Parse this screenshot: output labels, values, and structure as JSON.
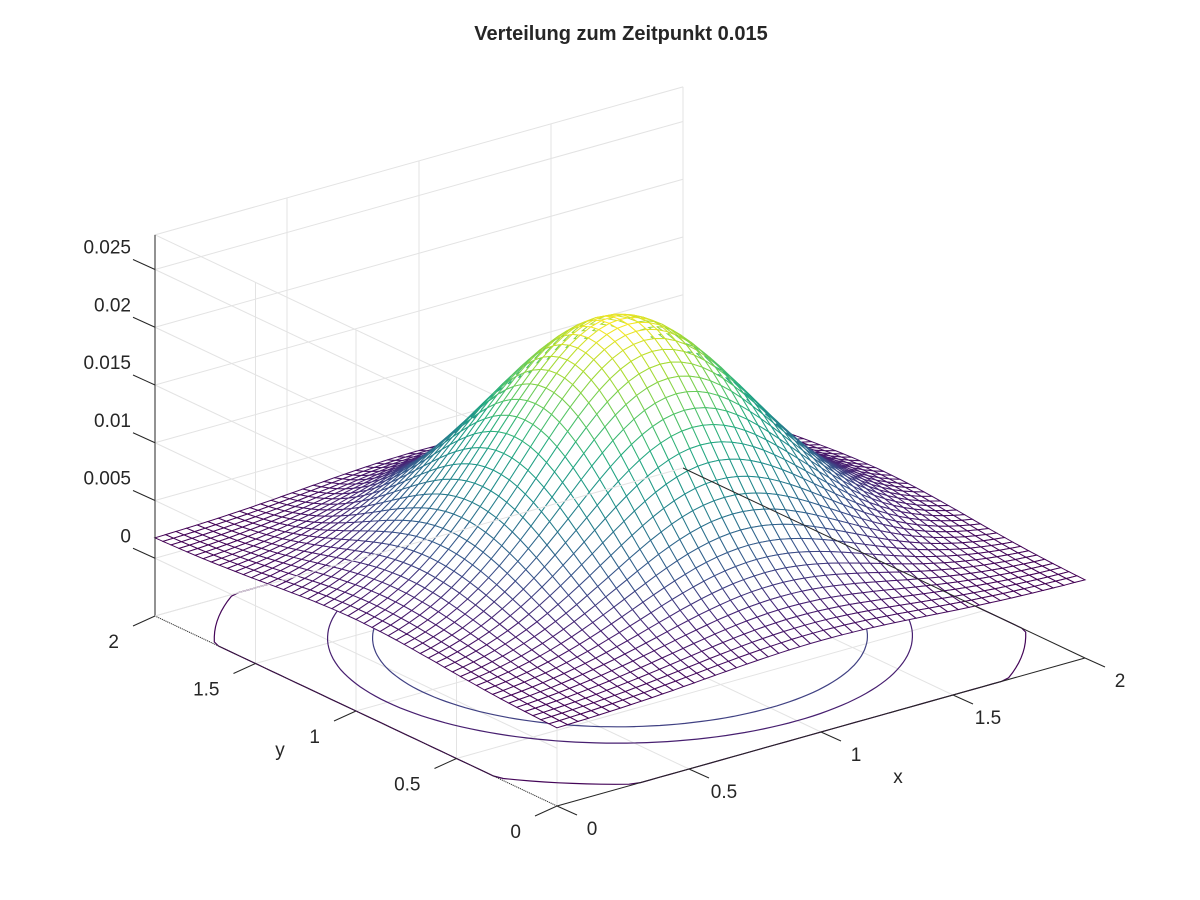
{
  "chart_data": {
    "type": "surface",
    "title": "Verteilung zum Zeitpunkt 0.015",
    "xlabel": "x",
    "ylabel": "y",
    "zlabel": "",
    "xlim": [
      0,
      2
    ],
    "ylim": [
      0,
      2
    ],
    "zlim": [
      -0.005,
      0.028
    ],
    "xticks": [
      {
        "value": 0,
        "label": "0"
      },
      {
        "value": 0.5,
        "label": "0.5"
      },
      {
        "value": 1,
        "label": "1"
      },
      {
        "value": 1.5,
        "label": "1.5"
      },
      {
        "value": 2,
        "label": "2"
      }
    ],
    "yticks": [
      {
        "value": 0,
        "label": "0"
      },
      {
        "value": 0.5,
        "label": "0.5"
      },
      {
        "value": 1,
        "label": "1"
      },
      {
        "value": 1.5,
        "label": "1.5"
      },
      {
        "value": 2,
        "label": "2"
      }
    ],
    "zticks": [
      {
        "value": 0,
        "label": "0"
      },
      {
        "value": 0.005,
        "label": "0.005"
      },
      {
        "value": 0.01,
        "label": "0.01"
      },
      {
        "value": 0.015,
        "label": "0.015"
      },
      {
        "value": 0.02,
        "label": "0.02"
      },
      {
        "value": 0.025,
        "label": "0.025"
      }
    ],
    "grid": true,
    "colormap": "viridis",
    "surface": {
      "function": "gaussian",
      "center": [
        1,
        1
      ],
      "peak": 0.0208,
      "base": 0.0017,
      "sigma": 0.42,
      "mesh": 50
    },
    "contours": {
      "plane": "floor",
      "levels": [
        0.002,
        0.004,
        0.006
      ]
    },
    "colors": {
      "background": "#ffffff",
      "grid": "#e3e3e3",
      "axis": "#262626",
      "colormap_low": "#440154",
      "colormap_mid": "#21918c",
      "colormap_high": "#fde725"
    }
  }
}
